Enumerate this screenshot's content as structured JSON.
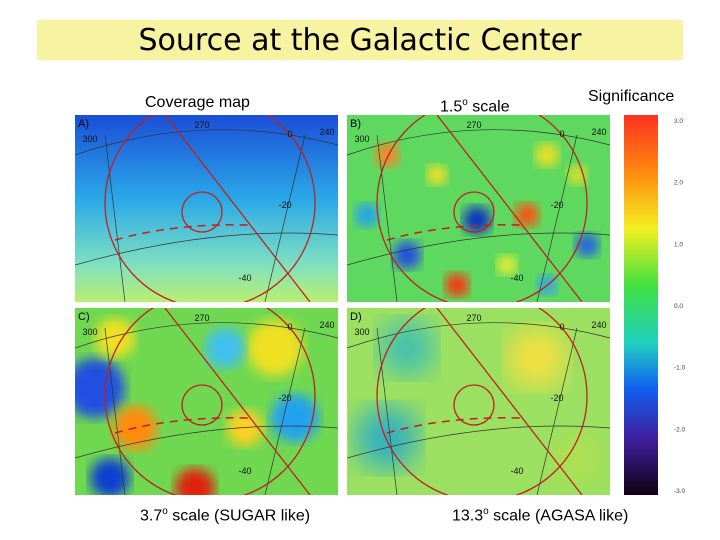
{
  "header": {
    "title": "Source at the Galactic Center"
  },
  "labels": {
    "coverage": "Coverage map",
    "scale_b": {
      "number": "1.5",
      "degree": "o",
      "rest": " scale"
    },
    "significance": "Significance",
    "scale_c": {
      "number": "3.7",
      "degree": "o",
      "rest": " scale (SUGAR like)"
    },
    "scale_d": {
      "number": "13.3",
      "degree": "o",
      "rest": " scale (AGASA like)"
    }
  },
  "panels": [
    {
      "label": "A)",
      "coords": [
        "270",
        "0",
        "240",
        "300",
        "-20",
        "-40"
      ]
    },
    {
      "label": "B)",
      "coords": [
        "270",
        "0",
        "240",
        "300",
        "-20",
        "-40"
      ]
    },
    {
      "label": "C)",
      "coords": [
        "270",
        "0",
        "240",
        "300",
        "-20",
        "-40"
      ]
    },
    {
      "label": "D)",
      "coords": [
        "270",
        "0",
        "240",
        "300",
        "-20",
        "-40"
      ]
    }
  ],
  "colorbar": {
    "ticks": [
      "3.0",
      "2.0",
      "1.0",
      "0.0",
      "-1.0",
      "-2.0",
      "-3.0"
    ]
  }
}
